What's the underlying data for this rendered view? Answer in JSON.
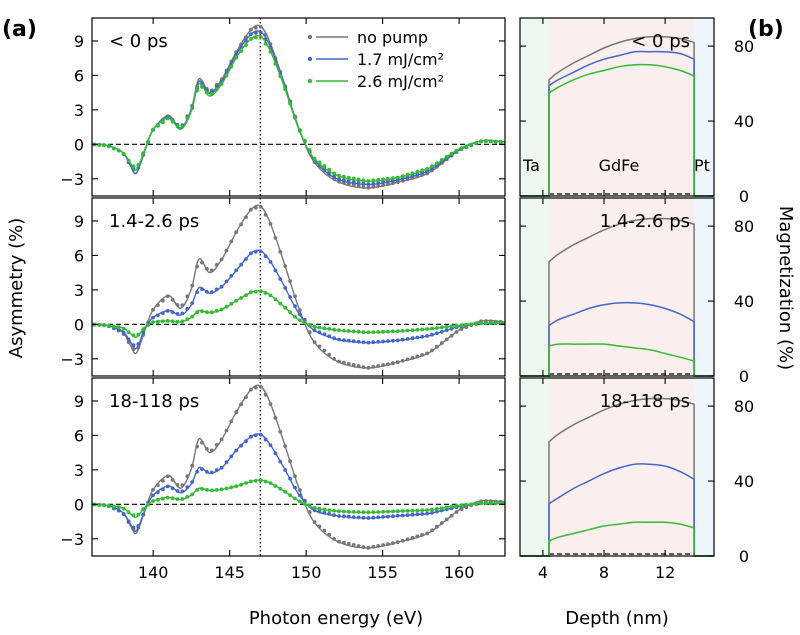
{
  "figure": {
    "label_a": "(a)",
    "label_b": "(b)",
    "colors": {
      "no_pump": "#777777",
      "low": "#4466cc",
      "high": "#33bb33",
      "ta_bg": "#eef7ee",
      "gdfe_bg": "#fbeeee",
      "pt_bg": "#eef5fb"
    }
  },
  "chart_data": [
    {
      "type": "line",
      "panel": "a",
      "xlabel": "Photon energy (eV)",
      "ylabel": "Asymmetry (%)",
      "xlim": [
        136,
        163
      ],
      "ylim": [
        -4.5,
        11
      ],
      "xticks": [
        140,
        145,
        150,
        155,
        160
      ],
      "xtick_labels": [
        "140",
        "145",
        "150",
        "155",
        "160"
      ],
      "yticks": [
        -3,
        0,
        3,
        6,
        9
      ],
      "ytick_labels": [
        "−3",
        "0",
        "3",
        "6",
        "9"
      ],
      "vline_x": 147,
      "hline_y": 0,
      "legend": {
        "placement": "top-right",
        "entries": [
          {
            "name": "no pump",
            "color": "#777777"
          },
          {
            "name": "1.7 mJ/cm²",
            "color": "#4466cc"
          },
          {
            "name": "2.6 mJ/cm²",
            "color": "#33bb33"
          }
        ]
      },
      "x": [
        136,
        137,
        138,
        138.5,
        138.9,
        139.5,
        140,
        141,
        141.8,
        142.5,
        143,
        143.7,
        144.5,
        145.5,
        146.4,
        147,
        147.6,
        148.5,
        149.5,
        150.5,
        152,
        154,
        156,
        158,
        160,
        161.5,
        163
      ],
      "panels": [
        {
          "label": "< 0 ps",
          "series": [
            {
              "name": "no pump",
              "values": [
                0,
                -0.1,
                -0.7,
                -1.8,
                -2.5,
                -0.4,
                1.3,
                2.5,
                1.4,
                3.1,
                5.7,
                4.5,
                5.7,
                8.2,
                10.0,
                10.3,
                9.0,
                5.6,
                1.5,
                -1.5,
                -3.2,
                -3.8,
                -3.3,
                -2.5,
                -0.5,
                0.3,
                0.2
              ]
            },
            {
              "name": "1.7 mJ/cm²",
              "values": [
                0,
                -0.1,
                -0.7,
                -1.8,
                -2.5,
                -0.4,
                1.3,
                2.4,
                1.4,
                3.0,
                5.5,
                4.4,
                5.5,
                8.0,
                9.6,
                9.8,
                8.7,
                5.5,
                1.4,
                -1.3,
                -3.0,
                -3.5,
                -3.1,
                -2.3,
                -0.5,
                0.3,
                0.2
              ]
            },
            {
              "name": "2.6 mJ/cm²",
              "values": [
                0,
                -0.1,
                -0.7,
                -1.6,
                -2.2,
                -0.3,
                1.3,
                2.3,
                1.3,
                2.9,
                5.3,
                4.2,
                5.3,
                7.7,
                9.2,
                9.4,
                8.3,
                5.3,
                1.4,
                -1.2,
                -2.7,
                -3.2,
                -2.9,
                -2.1,
                -0.4,
                0.3,
                0.2
              ]
            }
          ]
        },
        {
          "label": "1.4-2.6 ps",
          "series": [
            {
              "name": "no pump",
              "values": [
                0,
                -0.1,
                -0.7,
                -1.8,
                -2.5,
                -0.4,
                1.3,
                2.5,
                1.4,
                3.1,
                5.7,
                4.5,
                5.7,
                8.2,
                10.0,
                10.3,
                9.0,
                5.6,
                1.5,
                -1.5,
                -3.2,
                -3.8,
                -3.3,
                -2.5,
                -0.5,
                0.3,
                0.2
              ]
            },
            {
              "name": "1.7 mJ/cm²",
              "values": [
                0,
                -0.1,
                -0.6,
                -1.5,
                -2.1,
                -0.3,
                0.6,
                1.2,
                0.8,
                1.7,
                3.2,
                2.7,
                3.3,
                4.8,
                6.2,
                6.4,
                5.6,
                3.5,
                1.0,
                -0.5,
                -1.3,
                -1.6,
                -1.4,
                -1.0,
                -0.2,
                0.1,
                0.1
              ]
            },
            {
              "name": "2.6 mJ/cm²",
              "values": [
                0,
                -0.1,
                -0.3,
                -0.8,
                -1.1,
                -0.2,
                0.2,
                0.3,
                0.2,
                0.6,
                1.2,
                1.0,
                1.3,
                2.1,
                2.8,
                2.9,
                2.6,
                1.6,
                0.4,
                -0.2,
                -0.5,
                -0.7,
                -0.6,
                -0.4,
                -0.1,
                0.1,
                0.1
              ]
            }
          ]
        },
        {
          "label": "18-118 ps",
          "series": [
            {
              "name": "no pump",
              "values": [
                0,
                -0.1,
                -0.7,
                -1.8,
                -2.5,
                -0.4,
                1.3,
                2.5,
                1.4,
                3.1,
                5.7,
                4.5,
                5.7,
                8.2,
                10.0,
                10.3,
                9.0,
                5.6,
                1.5,
                -1.5,
                -3.2,
                -3.8,
                -3.3,
                -2.5,
                -0.5,
                0.3,
                0.2
              ]
            },
            {
              "name": "1.7 mJ/cm²",
              "values": [
                0,
                -0.1,
                -0.7,
                -1.7,
                -2.3,
                -0.4,
                0.8,
                1.6,
                1.0,
                1.8,
                3.2,
                2.7,
                3.2,
                4.8,
                5.9,
                6.1,
                5.3,
                3.3,
                0.9,
                -0.5,
                -1.0,
                -1.2,
                -1.0,
                -0.8,
                -0.2,
                0.1,
                0.1
              ]
            },
            {
              "name": "2.6 mJ/cm²",
              "values": [
                0,
                -0.1,
                -0.3,
                -0.8,
                -1.1,
                -0.2,
                0.3,
                0.6,
                0.4,
                0.8,
                1.4,
                1.2,
                1.3,
                1.6,
                2.0,
                2.1,
                1.9,
                1.2,
                0.3,
                -0.3,
                -0.6,
                -0.7,
                -0.6,
                -0.5,
                -0.1,
                0.1,
                0.1
              ]
            }
          ]
        }
      ]
    },
    {
      "type": "line",
      "panel": "b",
      "xlabel": "Depth (nm)",
      "ylabel": "Magnetization (%)",
      "xlim": [
        2.5,
        15.2
      ],
      "ylim": [
        0,
        95
      ],
      "xticks": [
        4,
        8,
        12
      ],
      "xtick_labels": [
        "4",
        "8",
        "12"
      ],
      "yticks": [
        0,
        40,
        80
      ],
      "ytick_labels": [
        "0",
        "40",
        "80"
      ],
      "regions": [
        {
          "name": "Ta",
          "range": [
            2.5,
            4.4
          ]
        },
        {
          "name": "GdFe",
          "range": [
            4.4,
            13.9
          ]
        },
        {
          "name": "Pt",
          "range": [
            13.9,
            15.2
          ]
        }
      ],
      "x": [
        4.4,
        5,
        6,
        7,
        8,
        9,
        10,
        11,
        12,
        13,
        13.9
      ],
      "panels": [
        {
          "label": "< 0 ps",
          "series": [
            {
              "name": "no pump",
              "values": [
                62,
                66,
                71,
                75,
                79,
                82,
                84,
                85,
                85,
                84,
                82
              ]
            },
            {
              "name": "1.7 mJ/cm²",
              "values": [
                59,
                62,
                66,
                70,
                73,
                75,
                77,
                77,
                77,
                76,
                73
              ]
            },
            {
              "name": "2.6 mJ/cm²",
              "values": [
                55,
                58,
                62,
                65,
                67,
                69,
                70,
                70,
                69,
                67,
                64
              ]
            }
          ]
        },
        {
          "label": "1.4-2.6 ps",
          "series": [
            {
              "name": "no pump",
              "values": [
                61,
                65,
                70,
                74,
                78,
                81,
                83,
                84,
                84,
                83,
                81
              ]
            },
            {
              "name": "1.7 mJ/cm²",
              "values": [
                27,
                30,
                33,
                36,
                38,
                39,
                39,
                38,
                36,
                33,
                29
              ]
            },
            {
              "name": "2.6 mJ/cm²",
              "values": [
                16,
                17,
                17,
                17,
                17,
                16,
                15,
                14,
                12,
                10,
                8
              ]
            }
          ]
        },
        {
          "label": "18-118 ps",
          "series": [
            {
              "name": "no pump",
              "values": [
                61,
                65,
                70,
                74,
                78,
                81,
                83,
                84,
                84,
                83,
                81
              ]
            },
            {
              "name": "1.7 mJ/cm²",
              "values": [
                28,
                31,
                36,
                40,
                44,
                47,
                49,
                49,
                48,
                45,
                41
              ]
            },
            {
              "name": "2.6 mJ/cm²",
              "values": [
                8,
                10,
                12,
                14,
                16,
                17,
                18,
                18,
                18,
                17,
                15
              ]
            }
          ]
        }
      ]
    }
  ]
}
